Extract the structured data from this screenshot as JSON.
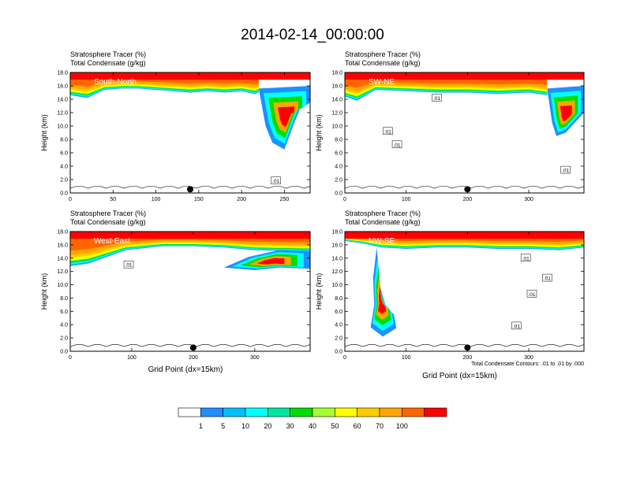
{
  "title": "2014-02-14_00:00:00",
  "chart_data": [
    {
      "type": "heatmap",
      "subtitle": [
        "Stratosphere Tracer   (%)",
        "Total Condensate   (g/kg)"
      ],
      "label": "South-North",
      "ylabel": "Height (km)",
      "xlabel": "",
      "xlim": [
        0,
        280
      ],
      "ylim": [
        0,
        18
      ],
      "xticks": [
        0,
        50,
        100,
        150,
        200,
        250
      ],
      "yticks": [
        0,
        2,
        4,
        6,
        8,
        10,
        12,
        14,
        16,
        18
      ],
      "marker_x": 140,
      "contour_labels": [
        {
          "text": ".01",
          "x": 240,
          "y": 1.8
        }
      ],
      "tracer_top_base": [
        [
          0,
          14.6
        ],
        [
          20,
          14.2
        ],
        [
          40,
          15.4
        ],
        [
          60,
          15.6
        ],
        [
          80,
          15.6
        ],
        [
          100,
          15.4
        ],
        [
          120,
          15.2
        ],
        [
          140,
          15.0
        ],
        [
          160,
          15.2
        ],
        [
          180,
          15.0
        ],
        [
          200,
          15.2
        ],
        [
          215,
          14.8
        ],
        [
          220,
          15.0
        ]
      ],
      "tracer_plume": [
        [
          220,
          15.6
        ],
        [
          228,
          10.0
        ],
        [
          236,
          7.5
        ],
        [
          250,
          6.5
        ],
        [
          260,
          10.0
        ],
        [
          268,
          12.5
        ],
        [
          280,
          13.5
        ],
        [
          280,
          16.0
        ]
      ]
    },
    {
      "type": "heatmap",
      "subtitle": [
        "Stratosphere Tracer   (%)",
        "Total Condensate   (g/kg)"
      ],
      "label": "SW-NE",
      "ylabel": "Height (km)",
      "xlabel": "",
      "xlim": [
        0,
        390
      ],
      "ylim": [
        0,
        18
      ],
      "xticks": [
        0,
        100,
        200,
        300
      ],
      "yticks": [
        0,
        2,
        4,
        6,
        8,
        10,
        12,
        14,
        16,
        18
      ],
      "marker_x": 200,
      "contour_labels": [
        {
          "text": ".01",
          "x": 70,
          "y": 9.2
        },
        {
          "text": ".01",
          "x": 85,
          "y": 7.2
        },
        {
          "text": ".01",
          "x": 150,
          "y": 14.2
        },
        {
          "text": ".01",
          "x": 360,
          "y": 3.4
        }
      ],
      "tracer_top_base": [
        [
          0,
          14.4
        ],
        [
          20,
          13.8
        ],
        [
          50,
          15.4
        ],
        [
          100,
          15.2
        ],
        [
          150,
          15.0
        ],
        [
          200,
          15.0
        ],
        [
          250,
          14.8
        ],
        [
          300,
          15.0
        ],
        [
          330,
          14.6
        ]
      ],
      "tracer_plume": [
        [
          330,
          15.6
        ],
        [
          338,
          10.5
        ],
        [
          345,
          8.5
        ],
        [
          360,
          9.0
        ],
        [
          375,
          10.5
        ],
        [
          390,
          12.0
        ],
        [
          390,
          16.0
        ]
      ]
    },
    {
      "type": "heatmap",
      "subtitle": [
        "Stratosphere Tracer   (%)",
        "Total Condensate   (g/kg)"
      ],
      "label": "West-East",
      "ylabel": "Height (km)",
      "xlabel": "Grid Point (dx=15km)",
      "xlim": [
        0,
        390
      ],
      "ylim": [
        0,
        18
      ],
      "xticks": [
        0,
        100,
        200,
        300
      ],
      "yticks": [
        0,
        2,
        4,
        6,
        8,
        10,
        12,
        14,
        16,
        18
      ],
      "marker_x": 200,
      "contour_labels": [
        {
          "text": ".01",
          "x": 95,
          "y": 13.0
        }
      ],
      "tracer_top_base": [
        [
          0,
          12.8
        ],
        [
          30,
          13.2
        ],
        [
          60,
          14.2
        ],
        [
          90,
          15.2
        ],
        [
          150,
          15.8
        ],
        [
          200,
          15.8
        ],
        [
          250,
          15.6
        ],
        [
          300,
          15.2
        ],
        [
          390,
          15.0
        ]
      ],
      "tracer_plume": [
        [
          250,
          12.6
        ],
        [
          290,
          14.2
        ],
        [
          340,
          15.2
        ],
        [
          390,
          15.0
        ],
        [
          390,
          12.4
        ],
        [
          340,
          12.6
        ],
        [
          300,
          12.2
        ]
      ]
    },
    {
      "type": "heatmap",
      "subtitle": [
        "Stratosphere Tracer   (%)",
        "Total Condensate   (g/kg)"
      ],
      "label": "NW-SE",
      "ylabel": "Height (km)",
      "xlabel": "Grid Point (dx=15km)",
      "xlim": [
        0,
        390
      ],
      "ylim": [
        0,
        18
      ],
      "xticks": [
        0,
        100,
        200,
        300
      ],
      "yticks": [
        0,
        2,
        4,
        6,
        8,
        10,
        12,
        14,
        16,
        18
      ],
      "marker_x": 200,
      "note": "Total Condensate Contours: .01 to .01 by .000",
      "contour_labels": [
        {
          "text": ".01",
          "x": 295,
          "y": 14.0
        },
        {
          "text": ".01",
          "x": 330,
          "y": 11.0
        },
        {
          "text": ".01",
          "x": 305,
          "y": 8.6
        },
        {
          "text": ".01",
          "x": 280,
          "y": 3.8
        }
      ],
      "tracer_top_base": [
        [
          0,
          16.6
        ],
        [
          30,
          16.2
        ],
        [
          60,
          15.6
        ],
        [
          100,
          15.4
        ],
        [
          150,
          15.6
        ],
        [
          200,
          15.6
        ],
        [
          250,
          15.4
        ],
        [
          300,
          15.4
        ],
        [
          350,
          15.2
        ],
        [
          390,
          15.6
        ]
      ],
      "tracer_plume": [
        [
          52,
          15.6
        ],
        [
          58,
          9.5
        ],
        [
          66,
          7.0
        ],
        [
          80,
          5.5
        ],
        [
          84,
          3.5
        ],
        [
          62,
          2.2
        ],
        [
          42,
          3.6
        ],
        [
          48,
          7.0
        ],
        [
          46,
          11.0
        ]
      ]
    }
  ],
  "colorbar": {
    "labels": [
      "1",
      "5",
      "10",
      "20",
      "30",
      "40",
      "50",
      "60",
      "70",
      "100"
    ],
    "colors": [
      "#ffffff",
      "#1e90ff",
      "#00bfff",
      "#00ffff",
      "#00e69f",
      "#00dd00",
      "#a5ff2f",
      "#ffff00",
      "#ffcc00",
      "#ffa500",
      "#ff6600",
      "#ff0000"
    ]
  }
}
